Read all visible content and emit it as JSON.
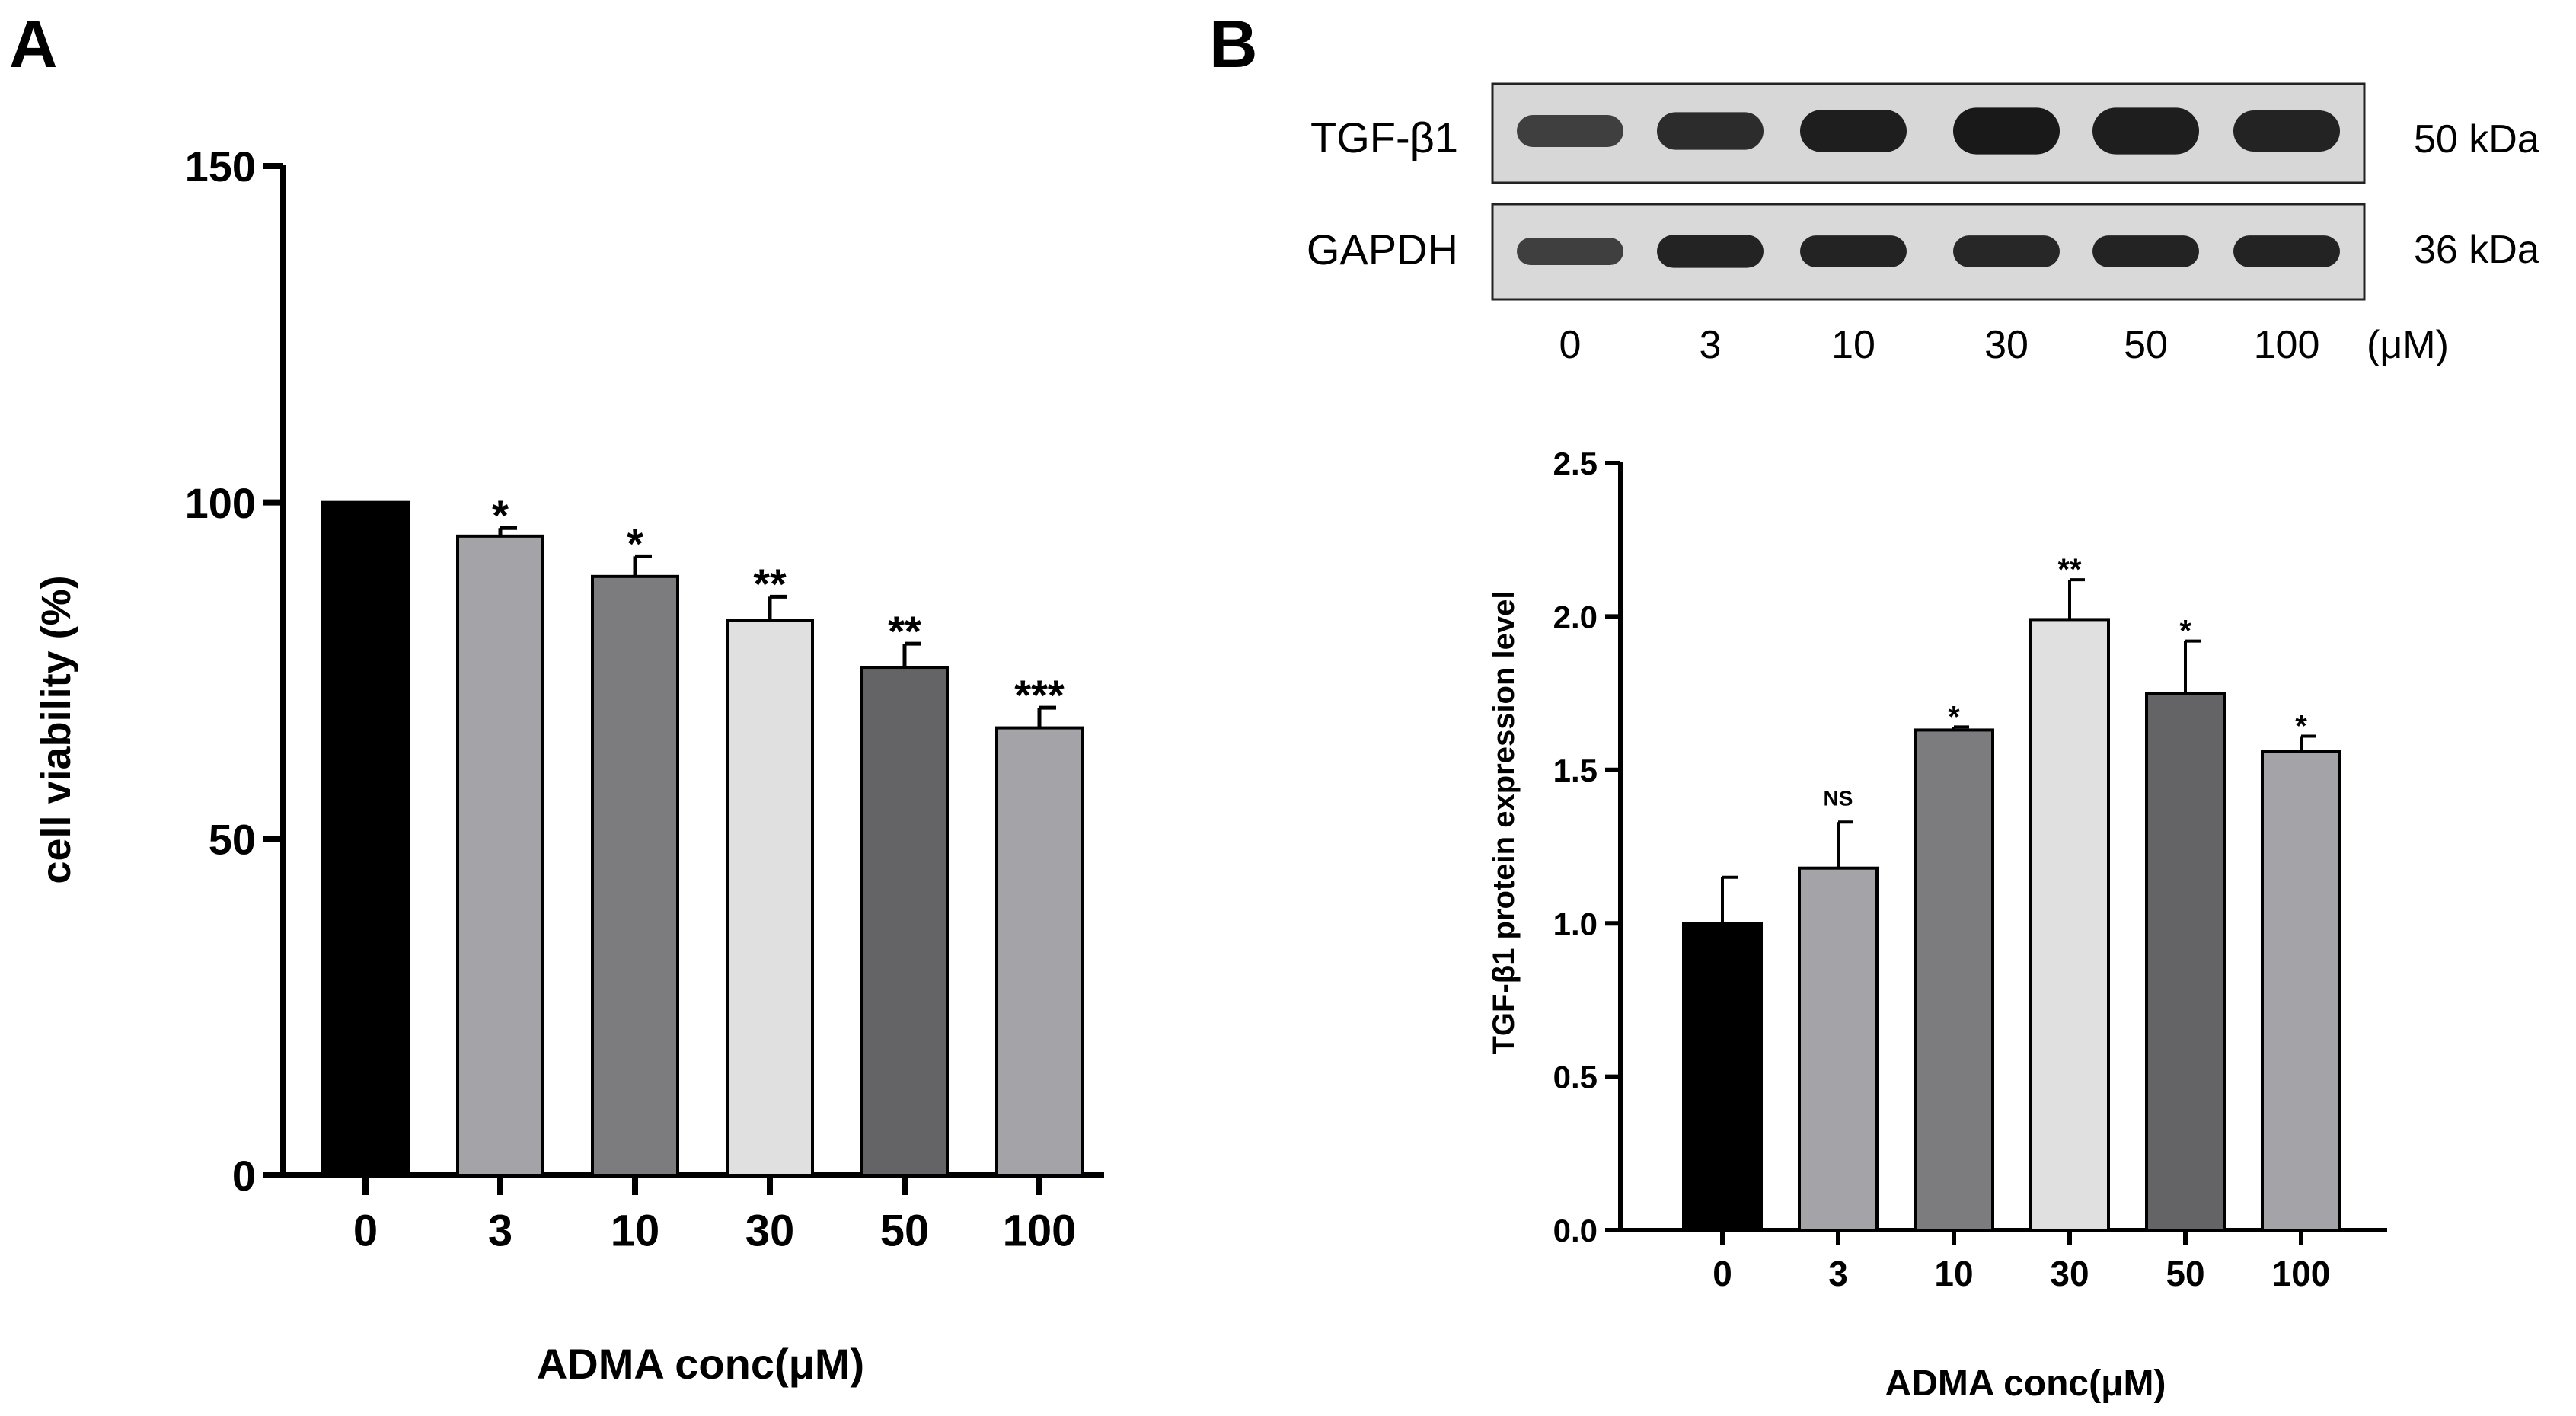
{
  "panels": {
    "a_label": "A",
    "b_label": "B"
  },
  "chart_data": [
    {
      "type": "bar",
      "panel": "A",
      "title": "",
      "categories": [
        "0",
        "3",
        "10",
        "30",
        "50",
        "100"
      ],
      "values": [
        100,
        95,
        89,
        82.5,
        75.5,
        66.5
      ],
      "errors": [
        0,
        1.2,
        3,
        3.5,
        3.5,
        3
      ],
      "significance": [
        "",
        "*",
        "*",
        "**",
        "**",
        "***"
      ],
      "bar_colors": [
        "#000000",
        "#a3a3a8",
        "#7c7c7f",
        "#e0e0e0",
        "#646466",
        "#a3a3a8"
      ],
      "xlabel": "ADMA conc(μM)",
      "ylabel": "cell viability (%)",
      "ylim": [
        0,
        150
      ],
      "yticks": [
        0,
        50,
        100,
        150
      ],
      "grid": false,
      "legend": "none"
    },
    {
      "type": "bar",
      "panel": "B",
      "title": "",
      "categories": [
        "0",
        "3",
        "10",
        "30",
        "50",
        "100"
      ],
      "values": [
        1.0,
        1.18,
        1.63,
        1.99,
        1.75,
        1.56
      ],
      "errors": [
        0.15,
        0.15,
        0.01,
        0.13,
        0.17,
        0.05
      ],
      "significance": [
        "",
        "NS",
        "*",
        "**",
        "*",
        "*"
      ],
      "bar_colors": [
        "#000000",
        "#a3a3a8",
        "#7c7c7f",
        "#e0e0e0",
        "#646466",
        "#a3a3a8"
      ],
      "xlabel": "ADMA conc(μM)",
      "ylabel": "TGF-β1 protein expression level",
      "ylim": [
        0,
        2.5
      ],
      "yticks": [
        "0.0",
        "0.5",
        "1.0",
        "1.5",
        "2.0",
        "2.5"
      ],
      "grid": false,
      "legend": "none"
    }
  ],
  "blot": {
    "rows": [
      {
        "protein": "TGF-β1",
        "size": "50 kDa",
        "intensity": [
          0.55,
          0.75,
          0.9,
          0.95,
          0.9,
          0.85
        ],
        "thickness": [
          0.5,
          0.62,
          0.72,
          0.82,
          0.82,
          0.7
        ]
      },
      {
        "protein": "GAPDH",
        "size": "36 kDa",
        "intensity": [
          0.55,
          0.85,
          0.85,
          0.8,
          0.85,
          0.85
        ],
        "thickness": [
          0.5,
          0.65,
          0.62,
          0.62,
          0.62,
          0.62
        ]
      }
    ],
    "lanes": [
      "0",
      "3",
      "10",
      "30",
      "50",
      "100"
    ],
    "unit": "(μM)"
  }
}
